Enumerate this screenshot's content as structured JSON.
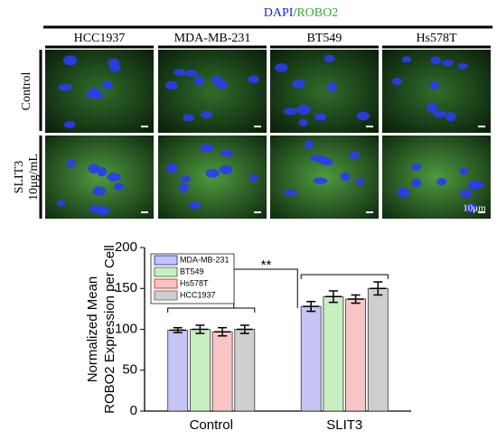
{
  "figure": {
    "title_parts": [
      {
        "text": "DAPI",
        "color": "#2323e0"
      },
      {
        "text": "/",
        "color": "#333333"
      },
      {
        "text": "ROBO2",
        "color": "#36a836"
      }
    ],
    "columns": [
      "HCC1937",
      "MDA-MB-231",
      "BT549",
      "Hs578T"
    ],
    "rows": [
      [
        "Control"
      ],
      [
        "SLIT3",
        "10μg/mL"
      ]
    ],
    "scale_bar": "10μm"
  },
  "chart_data": {
    "type": "bar",
    "y_label": [
      "Normalized Mean",
      "ROBO2 Expression per Cell"
    ],
    "categories": [
      "Control",
      "SLIT3"
    ],
    "series": [
      {
        "name": "MDA-MB-231",
        "color": "#c4c4f5",
        "edge": "#3c3cd8",
        "values": [
          99,
          128
        ],
        "errors": [
          3,
          6
        ]
      },
      {
        "name": "BT549",
        "color": "#c9eec2",
        "edge": "#3d8f3d",
        "values": [
          100,
          140
        ],
        "errors": [
          5,
          7
        ]
      },
      {
        "name": "Hs578T",
        "color": "#f8c4c4",
        "edge": "#d04545",
        "values": [
          97,
          137
        ],
        "errors": [
          5,
          5
        ]
      },
      {
        "name": "HCC1937",
        "color": "#cfcfcf",
        "edge": "#777777",
        "values": [
          100,
          150
        ],
        "errors": [
          5,
          8
        ]
      }
    ],
    "ylim": [
      0,
      200
    ],
    "yticks": [
      0,
      50,
      100,
      150,
      200
    ],
    "legend": "upper left",
    "annotations": [
      {
        "text": "**"
      }
    ]
  }
}
